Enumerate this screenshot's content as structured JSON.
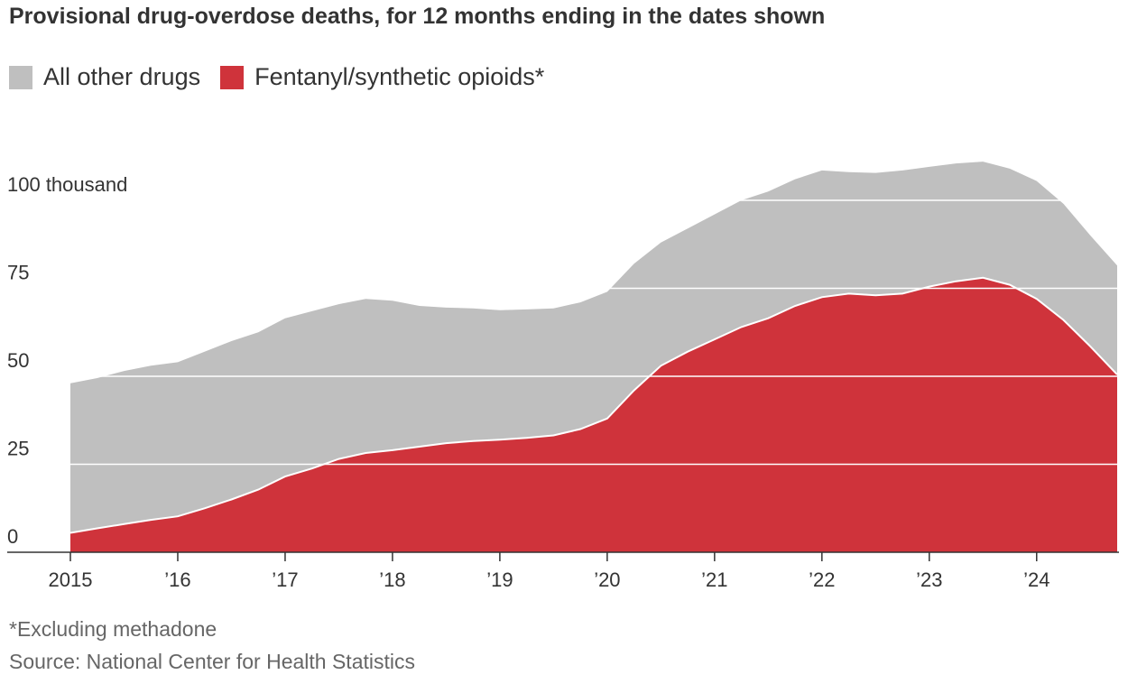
{
  "title": "Provisional drug-overdose deaths, for 12 months ending in the dates shown",
  "footnote": "*Excluding methadone",
  "source": "Source: National Center for Health Statistics",
  "colors": {
    "other": "#bfbfbf",
    "fentanyl": "#cf333b",
    "grid": "#ffffff",
    "axis": "#333333"
  },
  "chart_data": {
    "type": "area",
    "stacked": true,
    "legend": "top-left",
    "grid": true,
    "xlim": [
      2015.0,
      2024.75
    ],
    "ylim": [
      0,
      112
    ],
    "y_unit": "thousand",
    "x_ticks": [
      {
        "value": 2015,
        "label": "2015"
      },
      {
        "value": 2016,
        "label": "’16"
      },
      {
        "value": 2017,
        "label": "’17"
      },
      {
        "value": 2018,
        "label": "’18"
      },
      {
        "value": 2019,
        "label": "’19"
      },
      {
        "value": 2020,
        "label": "’20"
      },
      {
        "value": 2021,
        "label": "’21"
      },
      {
        "value": 2022,
        "label": "’22"
      },
      {
        "value": 2023,
        "label": "’23"
      },
      {
        "value": 2024,
        "label": "’24"
      }
    ],
    "y_ticks": [
      {
        "value": 0,
        "label": "0"
      },
      {
        "value": 25,
        "label": "25"
      },
      {
        "value": 50,
        "label": "50"
      },
      {
        "value": 75,
        "label": "75"
      },
      {
        "value": 100,
        "label": "100 thousand"
      }
    ],
    "x": [
      2015.0,
      2015.25,
      2015.5,
      2015.75,
      2016.0,
      2016.25,
      2016.5,
      2016.75,
      2017.0,
      2017.25,
      2017.5,
      2017.75,
      2018.0,
      2018.25,
      2018.5,
      2018.75,
      2019.0,
      2019.25,
      2019.5,
      2019.75,
      2020.0,
      2020.25,
      2020.5,
      2020.75,
      2021.0,
      2021.25,
      2021.5,
      2021.75,
      2022.0,
      2022.25,
      2022.5,
      2022.75,
      2023.0,
      2023.25,
      2023.5,
      2023.75,
      2024.0,
      2024.25,
      2024.5,
      2024.75
    ],
    "series": [
      {
        "name": "Fentanyl/synthetic opioids*",
        "values": [
          5.5,
          6.8,
          8.0,
          9.2,
          10.2,
          12.5,
          15.0,
          17.8,
          21.5,
          23.8,
          26.5,
          28.2,
          29.0,
          30.0,
          31.0,
          31.6,
          32.0,
          32.5,
          33.2,
          35.0,
          38.0,
          46.0,
          53.0,
          57.0,
          60.5,
          64.0,
          66.5,
          70.0,
          72.5,
          73.5,
          73.0,
          73.5,
          75.5,
          77.0,
          78.0,
          76.0,
          72.0,
          66.0,
          58.5,
          50.5
        ]
      },
      {
        "name": "All other drugs",
        "total_values": [
          48.0,
          49.5,
          51.5,
          53.0,
          54.0,
          57.0,
          60.0,
          62.5,
          66.5,
          68.5,
          70.5,
          72.0,
          71.5,
          70.0,
          69.5,
          69.3,
          68.8,
          69.0,
          69.3,
          71.0,
          74.0,
          82.0,
          88.0,
          92.0,
          96.0,
          100.0,
          102.5,
          106.0,
          108.5,
          108.0,
          107.8,
          108.5,
          109.5,
          110.5,
          111.0,
          109.0,
          105.5,
          99.0,
          90.0,
          81.5
        ]
      }
    ]
  }
}
